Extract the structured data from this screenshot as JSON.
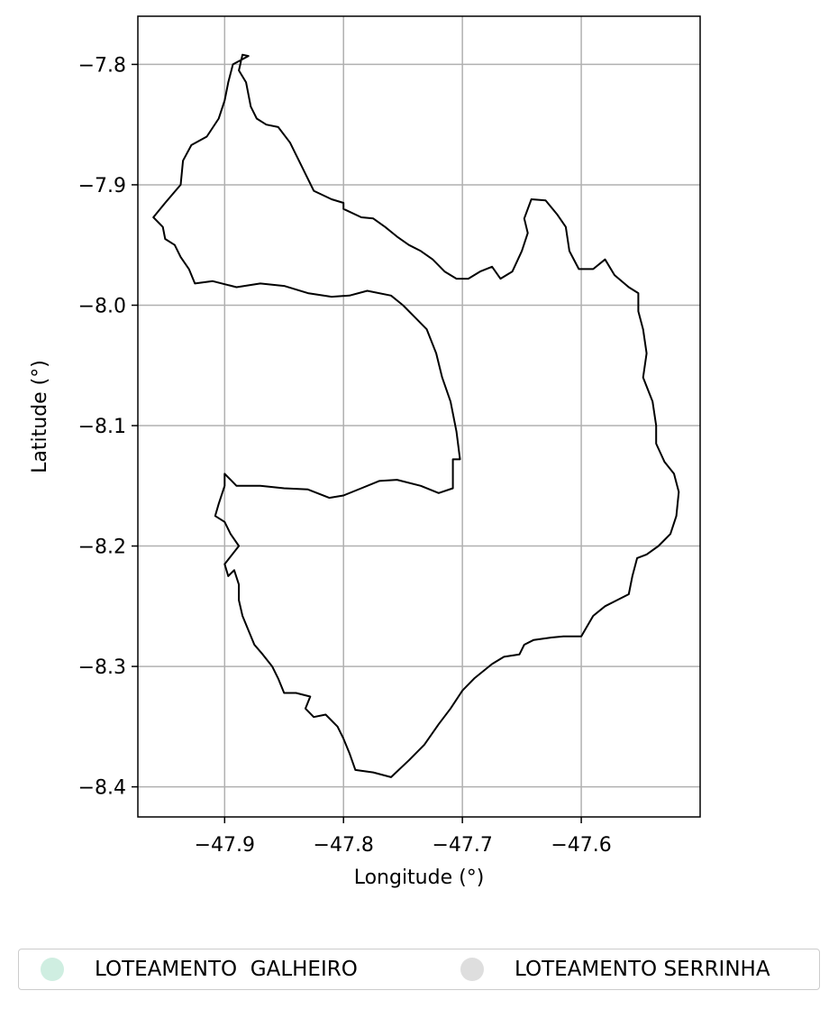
{
  "chart_data": {
    "type": "map",
    "xlabel": "Longitude (°)",
    "ylabel": "Latitude (°)",
    "xlim": [
      -47.973,
      -47.5
    ],
    "ylim": [
      -8.425,
      -7.76
    ],
    "grid": true,
    "x_ticks": [
      {
        "value": -47.9,
        "label": "−47.9"
      },
      {
        "value": -47.8,
        "label": "−47.8"
      },
      {
        "value": -47.7,
        "label": "−47.7"
      },
      {
        "value": -47.6,
        "label": "−47.6"
      }
    ],
    "y_ticks": [
      {
        "value": -7.8,
        "label": "−7.8"
      },
      {
        "value": -7.9,
        "label": "−7.9"
      },
      {
        "value": -8.0,
        "label": "−8.0"
      },
      {
        "value": -8.1,
        "label": "−8.1"
      },
      {
        "value": -8.2,
        "label": "−8.2"
      },
      {
        "value": -8.3,
        "label": "−8.3"
      },
      {
        "value": -8.4,
        "label": "−8.4"
      }
    ],
    "outline": [
      [
        -47.885,
        -7.792
      ],
      [
        -47.888,
        -7.805
      ],
      [
        -47.882,
        -7.815
      ],
      [
        -47.878,
        -7.835
      ],
      [
        -47.873,
        -7.845
      ],
      [
        -47.865,
        -7.85
      ],
      [
        -47.855,
        -7.852
      ],
      [
        -47.845,
        -7.865
      ],
      [
        -47.84,
        -7.875
      ],
      [
        -47.835,
        -7.885
      ],
      [
        -47.825,
        -7.905
      ],
      [
        -47.81,
        -7.912
      ],
      [
        -47.8,
        -7.915
      ],
      [
        -47.8,
        -7.92
      ],
      [
        -47.785,
        -7.927
      ],
      [
        -47.775,
        -7.928
      ],
      [
        -47.765,
        -7.935
      ],
      [
        -47.755,
        -7.943
      ],
      [
        -47.745,
        -7.95
      ],
      [
        -47.735,
        -7.955
      ],
      [
        -47.725,
        -7.962
      ],
      [
        -47.715,
        -7.972
      ],
      [
        -47.705,
        -7.978
      ],
      [
        -47.695,
        -7.978
      ],
      [
        -47.685,
        -7.972
      ],
      [
        -47.675,
        -7.968
      ],
      [
        -47.668,
        -7.978
      ],
      [
        -47.658,
        -7.972
      ],
      [
        -47.65,
        -7.955
      ],
      [
        -47.645,
        -7.94
      ],
      [
        -47.648,
        -7.928
      ],
      [
        -47.642,
        -7.912
      ],
      [
        -47.63,
        -7.913
      ],
      [
        -47.62,
        -7.925
      ],
      [
        -47.613,
        -7.935
      ],
      [
        -47.61,
        -7.955
      ],
      [
        -47.602,
        -7.97
      ],
      [
        -47.59,
        -7.97
      ],
      [
        -47.58,
        -7.962
      ],
      [
        -47.572,
        -7.975
      ],
      [
        -47.56,
        -7.985
      ],
      [
        -47.552,
        -7.99
      ],
      [
        -47.552,
        -8.005
      ],
      [
        -47.548,
        -8.02
      ],
      [
        -47.545,
        -8.04
      ],
      [
        -47.548,
        -8.06
      ],
      [
        -47.54,
        -8.08
      ],
      [
        -47.537,
        -8.1
      ],
      [
        -47.537,
        -8.115
      ],
      [
        -47.53,
        -8.13
      ],
      [
        -47.522,
        -8.14
      ],
      [
        -47.518,
        -8.155
      ],
      [
        -47.52,
        -8.175
      ],
      [
        -47.525,
        -8.19
      ],
      [
        -47.535,
        -8.2
      ],
      [
        -47.545,
        -8.207
      ],
      [
        -47.553,
        -8.21
      ],
      [
        -47.557,
        -8.225
      ],
      [
        -47.56,
        -8.24
      ],
      [
        -47.57,
        -8.245
      ],
      [
        -47.58,
        -8.25
      ],
      [
        -47.59,
        -8.258
      ],
      [
        -47.597,
        -8.27
      ],
      [
        -47.6,
        -8.275
      ],
      [
        -47.615,
        -8.275
      ],
      [
        -47.625,
        -8.276
      ],
      [
        -47.64,
        -8.278
      ],
      [
        -47.648,
        -8.282
      ],
      [
        -47.652,
        -8.29
      ],
      [
        -47.665,
        -8.292
      ],
      [
        -47.675,
        -8.298
      ],
      [
        -47.69,
        -8.31
      ],
      [
        -47.7,
        -8.32
      ],
      [
        -47.71,
        -8.335
      ],
      [
        -47.72,
        -8.348
      ],
      [
        -47.732,
        -8.365
      ],
      [
        -47.745,
        -8.378
      ],
      [
        -47.76,
        -8.392
      ],
      [
        -47.775,
        -8.388
      ],
      [
        -47.79,
        -8.386
      ],
      [
        -47.795,
        -8.372
      ],
      [
        -47.8,
        -8.36
      ],
      [
        -47.805,
        -8.35
      ],
      [
        -47.815,
        -8.34
      ],
      [
        -47.825,
        -8.342
      ],
      [
        -47.832,
        -8.335
      ],
      [
        -47.828,
        -8.325
      ],
      [
        -47.84,
        -8.322
      ],
      [
        -47.85,
        -8.322
      ],
      [
        -47.855,
        -8.31
      ],
      [
        -47.86,
        -8.3
      ],
      [
        -47.868,
        -8.29
      ],
      [
        -47.875,
        -8.282
      ],
      [
        -47.88,
        -8.27
      ],
      [
        -47.885,
        -8.258
      ],
      [
        -47.888,
        -8.245
      ],
      [
        -47.888,
        -8.232
      ],
      [
        -47.892,
        -8.22
      ],
      [
        -47.897,
        -8.225
      ],
      [
        -47.9,
        -8.215
      ],
      [
        -47.888,
        -8.2
      ],
      [
        -47.895,
        -8.19
      ],
      [
        -47.9,
        -8.18
      ],
      [
        -47.908,
        -8.175
      ],
      [
        -47.905,
        -8.165
      ],
      [
        -47.9,
        -8.15
      ],
      [
        -47.9,
        -8.14
      ],
      [
        -47.895,
        -8.145
      ],
      [
        -47.89,
        -8.15
      ],
      [
        -47.87,
        -8.15
      ],
      [
        -47.85,
        -8.152
      ],
      [
        -47.83,
        -8.153
      ],
      [
        -47.812,
        -8.16
      ],
      [
        -47.8,
        -8.158
      ],
      [
        -47.785,
        -8.152
      ],
      [
        -47.77,
        -8.146
      ],
      [
        -47.755,
        -8.145
      ],
      [
        -47.735,
        -8.15
      ],
      [
        -47.72,
        -8.156
      ],
      [
        -47.708,
        -8.152
      ],
      [
        -47.708,
        -8.128
      ],
      [
        -47.702,
        -8.128
      ],
      [
        -47.705,
        -8.105
      ],
      [
        -47.71,
        -8.08
      ],
      [
        -47.717,
        -8.06
      ],
      [
        -47.722,
        -8.04
      ],
      [
        -47.73,
        -8.02
      ],
      [
        -47.74,
        -8.01
      ],
      [
        -47.75,
        -8.0
      ],
      [
        -47.76,
        -7.992
      ],
      [
        -47.78,
        -7.988
      ],
      [
        -47.795,
        -7.992
      ],
      [
        -47.81,
        -7.993
      ],
      [
        -47.83,
        -7.99
      ],
      [
        -47.85,
        -7.984
      ],
      [
        -47.87,
        -7.982
      ],
      [
        -47.89,
        -7.985
      ],
      [
        -47.91,
        -7.98
      ],
      [
        -47.925,
        -7.982
      ],
      [
        -47.93,
        -7.97
      ],
      [
        -47.937,
        -7.96
      ],
      [
        -47.942,
        -7.95
      ],
      [
        -47.95,
        -7.945
      ],
      [
        -47.952,
        -7.935
      ],
      [
        -47.96,
        -7.927
      ],
      [
        -47.95,
        -7.915
      ],
      [
        -47.937,
        -7.9
      ],
      [
        -47.935,
        -7.88
      ],
      [
        -47.928,
        -7.867
      ],
      [
        -47.915,
        -7.86
      ],
      [
        -47.905,
        -7.845
      ],
      [
        -47.9,
        -7.83
      ],
      [
        -47.897,
        -7.815
      ],
      [
        -47.893,
        -7.8
      ],
      [
        -47.88,
        -7.793
      ],
      [
        -47.885,
        -7.792
      ]
    ]
  },
  "legend": {
    "items": [
      {
        "label": "LOTEAMENTO  GALHEIRO",
        "color": "#cfeee1"
      },
      {
        "label": "LOTEAMENTO SERRINHA",
        "color": "#dedede"
      }
    ]
  }
}
